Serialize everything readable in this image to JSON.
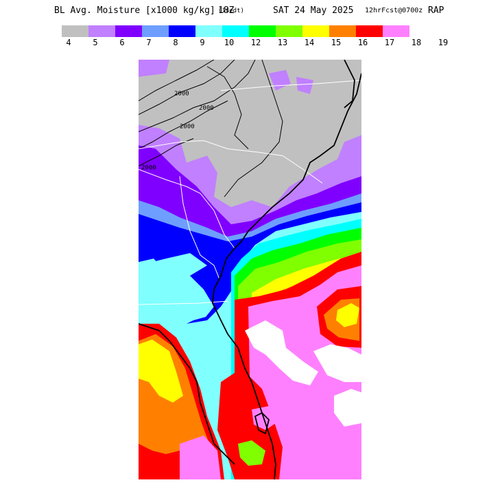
{
  "title": {
    "main": "BL Avg. Moisture [x1000 kg/kg]",
    "valid_hour": "18Z",
    "local_time": "(14edt)",
    "date": "SAT 24 May 2025",
    "forecast": "12hrFcst@0700z",
    "model": "RAP"
  },
  "legend": {
    "colors": [
      "#c0c0c0",
      "#c080ff",
      "#8000ff",
      "#6e9eff",
      "#0000ff",
      "#80ffff",
      "#00ffff",
      "#00ff00",
      "#80ff00",
      "#ffff00",
      "#ff8000",
      "#ff0000",
      "#ff80ff"
    ],
    "tick_labels": [
      "4",
      "5",
      "6",
      "7",
      "8",
      "9",
      "10",
      "12",
      "13",
      "14",
      "15",
      "16",
      "17",
      "18",
      "19"
    ]
  },
  "map": {
    "contour_labels": [
      "2000",
      "2000",
      "2000",
      "2000"
    ]
  }
}
